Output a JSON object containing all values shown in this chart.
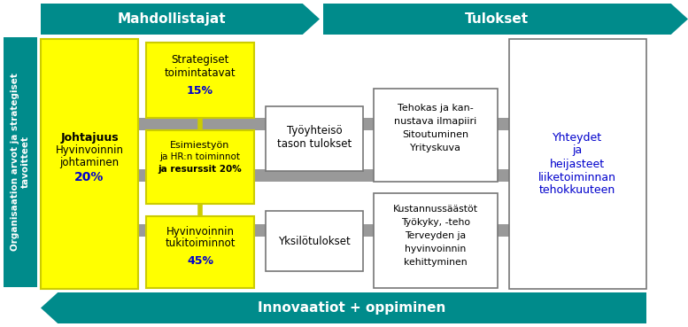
{
  "bg_color": "#ffffff",
  "teal_color": "#008B8B",
  "yellow_color": "#ffff00",
  "yellow_edge": "#cccc00",
  "gray_color": "#999999",
  "white_color": "#ffffff",
  "dark_color": "#000000",
  "blue_text": "#0000cc",
  "top_arrow_label": "Mahdollistajat",
  "top_arrow2_label": "Tulokset",
  "bottom_arrow_label": "Innovaatiot + oppiminen",
  "left_banner_label": "Organisaation arvot ja strategiset\ntavoitteet",
  "box_johtajuus_lines": [
    "Johtajuus",
    "Hyvinvoinnin",
    "johtaminen",
    "20%"
  ],
  "box_strat_lines": [
    "Strategiset",
    "toimintatavat",
    "15%"
  ],
  "box_esim_lines": [
    "Esimiestyön",
    "ja HR:n toiminnot",
    "ja resurssit 20%"
  ],
  "box_hyv_lines": [
    "Hyvinvoinnin",
    "tukitoiminnot",
    "45%"
  ],
  "box_tyoyht_lines": [
    "Työyhteisö",
    "tason tulokset"
  ],
  "box_yksilo_lines": [
    "Yksilötulokset"
  ],
  "box_tehokas_lines": [
    "Tehokas ja kan-",
    "nustava ilmapiiri",
    "Sitoutuminen",
    "Yrityskuva"
  ],
  "box_kustan_lines": [
    "Kustannussäästöt",
    "Työkyky, -teho",
    "Terveyden ja",
    "hyvinvoinnin",
    "kehittyminen"
  ],
  "box_yhteydet_lines": [
    "Yhteydet",
    "ja",
    "heijasteet",
    "liiketoiminnan",
    "tehokkuuteen"
  ]
}
